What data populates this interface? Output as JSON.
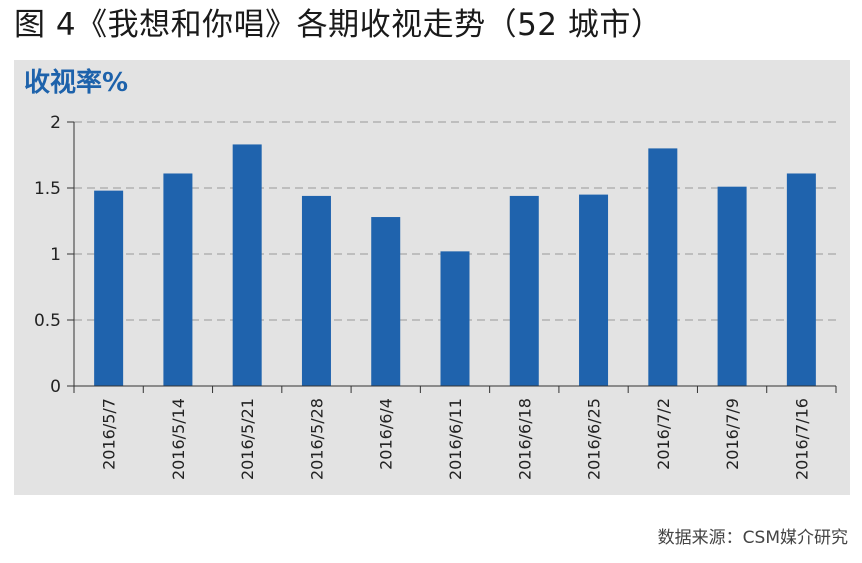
{
  "figure_title": "图 4《我想和你唱》各期收视走势（52 城市）",
  "source_note": "数据来源：CSM媒介研究",
  "colors": {
    "bar": "#1f63ad",
    "panel_background": "#e3e3e3",
    "ylabel": "#1d62ab",
    "gridline": "#9a9a9a"
  },
  "chart_data": {
    "type": "bar",
    "title": "",
    "xlabel": "",
    "ylabel": "收视率%",
    "categories": [
      "2016/5/7",
      "2016/5/14",
      "2016/5/21",
      "2016/5/28",
      "2016/6/4",
      "2016/6/11",
      "2016/6/18",
      "2016/6/25",
      "2016/7/2",
      "2016/7/9",
      "2016/7/16"
    ],
    "values": [
      1.48,
      1.61,
      1.83,
      1.44,
      1.28,
      1.02,
      1.44,
      1.45,
      1.8,
      1.51,
      1.61
    ],
    "ylim": [
      0,
      2
    ],
    "yticks": [
      "0",
      "0.5",
      "1",
      "1.5",
      "2"
    ],
    "grid": "dashed horizontal",
    "legend": "none"
  }
}
